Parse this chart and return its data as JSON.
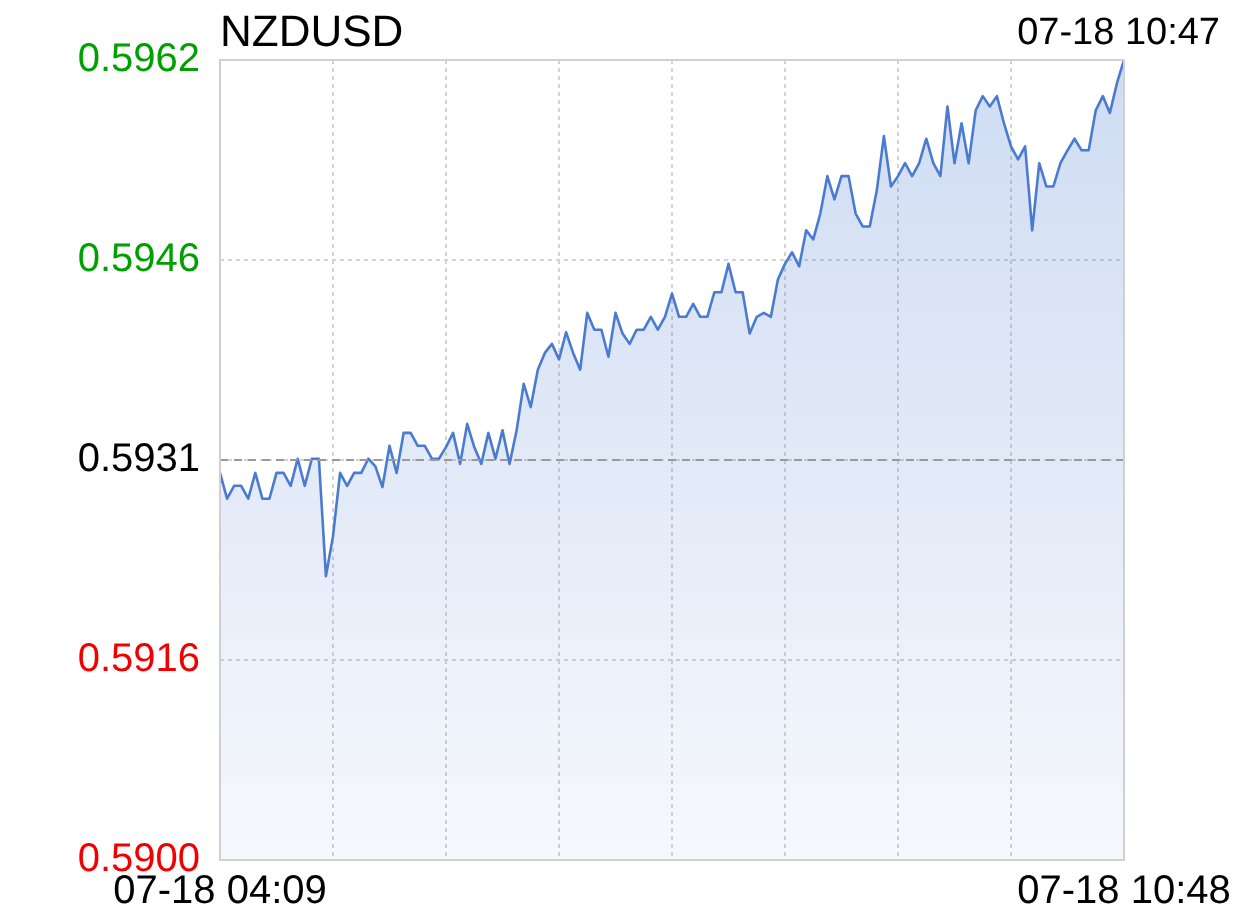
{
  "chart_data": {
    "type": "area",
    "title": "NZDUSD",
    "subtitle": "07-18 10:47",
    "categories": [
      "07-18 04:09",
      null,
      null,
      null,
      null,
      null,
      null,
      null,
      null,
      null,
      null,
      null,
      null,
      null,
      null,
      null,
      null,
      null,
      null,
      null,
      null,
      null,
      null,
      null,
      null,
      null,
      null,
      null,
      null,
      null,
      null,
      null,
      null,
      null,
      null,
      null,
      null,
      null,
      null,
      null,
      null,
      null,
      null,
      null,
      null,
      null,
      null,
      null,
      null,
      null,
      null,
      null,
      null,
      null,
      null,
      null,
      null,
      null,
      null,
      null,
      null,
      null,
      null,
      null,
      null,
      null,
      null,
      null,
      null,
      null,
      null,
      null,
      null,
      null,
      null,
      null,
      null,
      null,
      null,
      null,
      null,
      null,
      null,
      null,
      null,
      null,
      null,
      null,
      null,
      null,
      null,
      null,
      null,
      null,
      null,
      null,
      null,
      null,
      null,
      null,
      null,
      null,
      null,
      null,
      null,
      null,
      null,
      null,
      null,
      null,
      null,
      null,
      null,
      null,
      null,
      null,
      null,
      null,
      null,
      null,
      null,
      null,
      null,
      null,
      null,
      null,
      null,
      null,
      "07-18 10:48"
    ],
    "series": [
      {
        "color": "#4a7bd0",
        "values": [
          0.593,
          0.5928,
          0.5929,
          0.5929,
          0.5928,
          0.593,
          0.5928,
          0.5928,
          0.593,
          0.593,
          0.5929,
          0.59311,
          0.5929,
          0.59311,
          0.59311,
          0.5922,
          0.59251,
          0.593,
          0.5929,
          0.593,
          0.593,
          0.59311,
          0.59305,
          0.59289,
          0.59321,
          0.593,
          0.59331,
          0.59331,
          0.59321,
          0.59321,
          0.59311,
          0.59311,
          0.5932,
          0.59331,
          0.59307,
          0.59338,
          0.5932,
          0.59307,
          0.59331,
          0.59311,
          0.59333,
          0.59307,
          0.59333,
          0.59369,
          0.59351,
          0.5938,
          0.59393,
          0.594,
          0.59388,
          0.59409,
          0.59393,
          0.5938,
          0.59424,
          0.59411,
          0.59411,
          0.5939,
          0.59424,
          0.59408,
          0.594,
          0.59411,
          0.59411,
          0.59421,
          0.59411,
          0.59421,
          0.59439,
          0.59421,
          0.59421,
          0.59431,
          0.59421,
          0.59421,
          0.5944,
          0.5944,
          0.59462,
          0.5944,
          0.5944,
          0.59408,
          0.59421,
          0.59424,
          0.59421,
          0.5945,
          0.59462,
          0.59471,
          0.5946,
          0.59488,
          0.59481,
          0.59501,
          0.5953,
          0.59512,
          0.5953,
          0.5953,
          0.59501,
          0.59491,
          0.59491,
          0.59519,
          0.59561,
          0.59522,
          0.5953,
          0.5954,
          0.5953,
          0.5954,
          0.59559,
          0.5954,
          0.5953,
          0.59584,
          0.5954,
          0.59571,
          0.5954,
          0.59581,
          0.59592,
          0.59584,
          0.59592,
          0.59571,
          0.59553,
          0.59543,
          0.59553,
          0.59488,
          0.5954,
          0.59522,
          0.59522,
          0.5954,
          0.5955,
          0.59559,
          0.5955,
          0.5955,
          0.59581,
          0.59592,
          0.59579,
          0.59602,
          0.5962
        ]
      }
    ],
    "ylim": [
      0.59,
      0.5962
    ],
    "yticks": [
      {
        "value": 0.59,
        "label": "0.5900"
      },
      {
        "value": 0.59155,
        "label": "0.5916"
      },
      {
        "value": 0.5931,
        "label": "0.5931"
      },
      {
        "value": 0.59465,
        "label": "0.5946"
      },
      {
        "value": 0.5962,
        "label": "0.5962"
      }
    ],
    "ref_lines": [
      {
        "axis": "y",
        "value": 0.5931,
        "color": "#999999",
        "line_style": "dashed"
      }
    ],
    "grid": true,
    "marker": "none",
    "line_style": "solid"
  }
}
